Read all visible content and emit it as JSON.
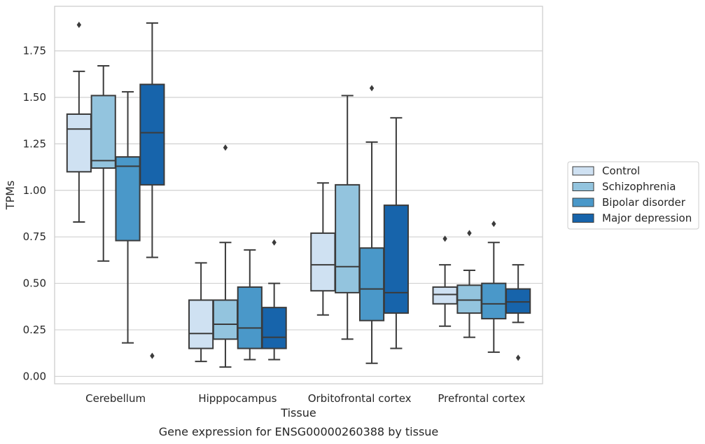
{
  "chart_data": {
    "type": "box",
    "title": "",
    "caption": "Gene expression for ENSG00000260388 by tissue",
    "xlabel": "Tissue",
    "ylabel": "TPMs",
    "ylim": [
      -0.04,
      1.99
    ],
    "yticks": [
      0.0,
      0.25,
      0.5,
      0.75,
      1.0,
      1.25,
      1.5,
      1.75
    ],
    "ytick_labels": [
      "0.00",
      "0.25",
      "0.50",
      "0.75",
      "1.00",
      "1.25",
      "1.50",
      "1.75"
    ],
    "categories": [
      "Cerebellum",
      "Hipppocampus",
      "Orbitofrontal cortex",
      "Prefrontal cortex"
    ],
    "grid": "horizontal",
    "legend_position": "right",
    "series": [
      {
        "name": "Control",
        "color": "#cfe1f2",
        "boxes": [
          {
            "whislo": 0.83,
            "q1": 1.1,
            "med": 1.33,
            "q3": 1.41,
            "whishi": 1.64,
            "fliers": [
              1.89
            ]
          },
          {
            "whislo": 0.08,
            "q1": 0.15,
            "med": 0.23,
            "q3": 0.41,
            "whishi": 0.61,
            "fliers": []
          },
          {
            "whislo": 0.33,
            "q1": 0.46,
            "med": 0.6,
            "q3": 0.77,
            "whishi": 1.04,
            "fliers": []
          },
          {
            "whislo": 0.27,
            "q1": 0.39,
            "med": 0.44,
            "q3": 0.48,
            "whishi": 0.6,
            "fliers": [
              0.74
            ]
          }
        ]
      },
      {
        "name": "Schizophrenia",
        "color": "#93c4de",
        "boxes": [
          {
            "whislo": 0.62,
            "q1": 1.12,
            "med": 1.16,
            "q3": 1.51,
            "whishi": 1.67,
            "fliers": []
          },
          {
            "whislo": 0.05,
            "q1": 0.2,
            "med": 0.28,
            "q3": 0.41,
            "whishi": 0.72,
            "fliers": [
              1.23
            ]
          },
          {
            "whislo": 0.2,
            "q1": 0.45,
            "med": 0.59,
            "q3": 1.03,
            "whishi": 1.51,
            "fliers": []
          },
          {
            "whislo": 0.21,
            "q1": 0.34,
            "med": 0.41,
            "q3": 0.49,
            "whishi": 0.57,
            "fliers": [
              0.77
            ]
          }
        ]
      },
      {
        "name": "Bipolar disorder",
        "color": "#4a98c9",
        "boxes": [
          {
            "whislo": 0.18,
            "q1": 0.73,
            "med": 1.13,
            "q3": 1.18,
            "whishi": 1.53,
            "fliers": []
          },
          {
            "whislo": 0.09,
            "q1": 0.15,
            "med": 0.26,
            "q3": 0.48,
            "whishi": 0.68,
            "fliers": []
          },
          {
            "whislo": 0.07,
            "q1": 0.3,
            "med": 0.47,
            "q3": 0.69,
            "whishi": 1.26,
            "fliers": [
              1.55
            ]
          },
          {
            "whislo": 0.13,
            "q1": 0.31,
            "med": 0.39,
            "q3": 0.5,
            "whishi": 0.72,
            "fliers": [
              0.82
            ]
          }
        ]
      },
      {
        "name": "Major depression",
        "color": "#1764ab",
        "boxes": [
          {
            "whislo": 0.64,
            "q1": 1.03,
            "med": 1.31,
            "q3": 1.57,
            "whishi": 1.9,
            "fliers": [
              0.11
            ]
          },
          {
            "whislo": 0.09,
            "q1": 0.15,
            "med": 0.21,
            "q3": 0.37,
            "whishi": 0.5,
            "fliers": [
              0.72
            ]
          },
          {
            "whislo": 0.15,
            "q1": 0.34,
            "med": 0.45,
            "q3": 0.92,
            "whishi": 1.39,
            "fliers": []
          },
          {
            "whislo": 0.29,
            "q1": 0.34,
            "med": 0.4,
            "q3": 0.47,
            "whishi": 0.6,
            "fliers": [
              0.1
            ]
          }
        ]
      }
    ]
  }
}
